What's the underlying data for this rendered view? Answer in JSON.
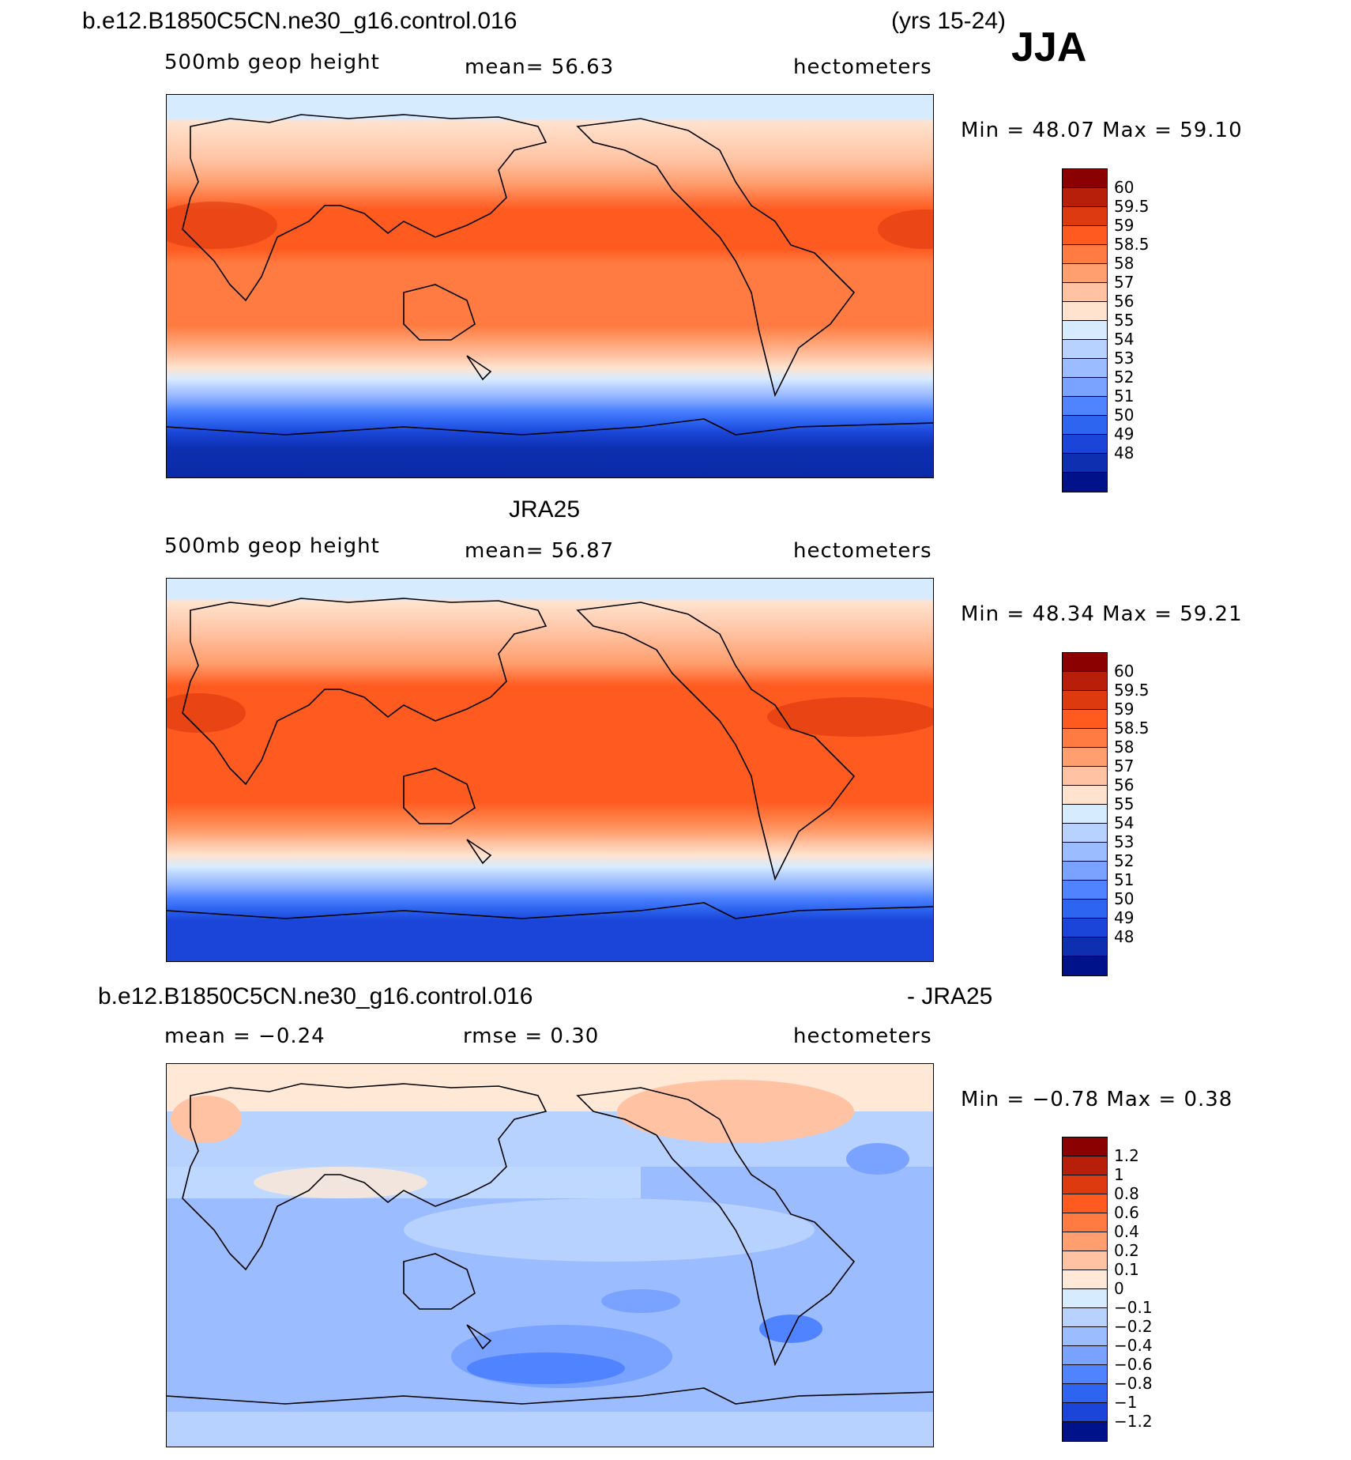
{
  "season": "JJA",
  "panels": [
    {
      "title_left": "b.e12.B1850C5CN.ne30_g16.control.016",
      "title_right": "(yrs 15-24)",
      "variable": "500mb  geop  height",
      "stat": "mean=   56.63",
      "units": "hectometers",
      "minmax": "Min =   48.07  Max =   59.10",
      "type": "abs"
    },
    {
      "title_center": "JRA25",
      "variable": "500mb  geop  height",
      "stat": "mean=   56.87",
      "units": "hectometers",
      "minmax": "Min =   48.34  Max =   59.21",
      "type": "abs"
    },
    {
      "title_left": "b.e12.B1850C5CN.ne30_g16.control.016",
      "title_right": "- JRA25",
      "stat_mean": "mean  =   −0.24",
      "stat_rmse": "rmse  =     0.30",
      "units": "hectometers",
      "minmax": "Min =   −0.78  Max =     0.38",
      "type": "diff"
    }
  ],
  "legend_abs": {
    "colors": [
      "#8b0000",
      "#b81f0a",
      "#de3a10",
      "#ff5a1f",
      "#ff7b41",
      "#ff9e6e",
      "#ffc3a3",
      "#ffe3cf",
      "#d7ebff",
      "#b8d2ff",
      "#9bbcff",
      "#7aa3ff",
      "#4f83ff",
      "#2d64f0",
      "#1a45d8",
      "#0d2fb0",
      "#00128a"
    ],
    "labels": [
      "60",
      "59.5",
      "59",
      "58.5",
      "58",
      "57",
      "56",
      "55",
      "54",
      "53",
      "52",
      "51",
      "50",
      "49",
      "48"
    ]
  },
  "legend_diff": {
    "colors": [
      "#8b0000",
      "#b81f0a",
      "#de3a10",
      "#ff5a1f",
      "#ff7b41",
      "#ff9e6e",
      "#ffc3a3",
      "#ffe8d6",
      "#d7ebff",
      "#b8d2ff",
      "#9bbcff",
      "#7aa3ff",
      "#4f83ff",
      "#2d64f0",
      "#1a45d8",
      "#00128a"
    ],
    "labels": [
      "1.2",
      "1",
      "0.8",
      "0.6",
      "0.4",
      "0.2",
      "0.1",
      "0",
      "−0.1",
      "−0.2",
      "−0.4",
      "−0.6",
      "−0.8",
      "−1",
      "−1.2"
    ]
  }
}
